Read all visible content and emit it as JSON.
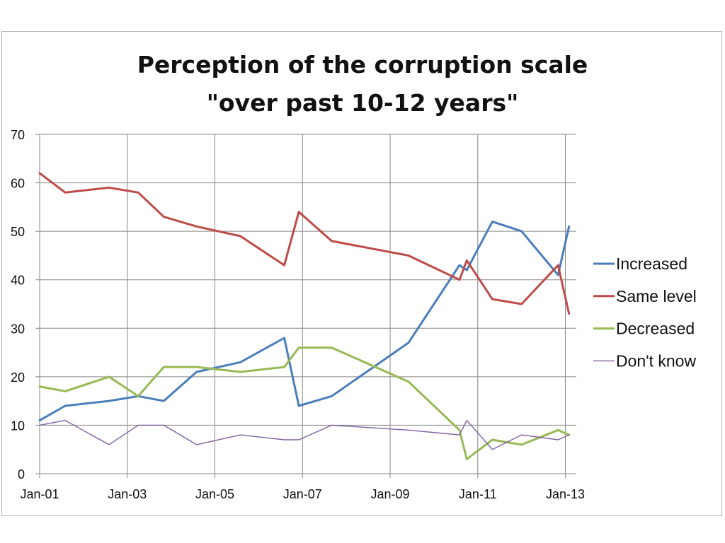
{
  "chart_data": {
    "type": "line",
    "title_lines": [
      "Perception of the corruption scale",
      "\"over past 10-12 years\""
    ],
    "xlabel": "",
    "ylabel": "",
    "ylim": [
      0,
      70
    ],
    "yticks": [
      0,
      10,
      20,
      30,
      40,
      50,
      60,
      70
    ],
    "xlim": [
      "2001-01",
      "2013-04"
    ],
    "xtick_labels": [
      "Jan-01",
      "Jan-03",
      "Jan-05",
      "Jan-07",
      "Jan-09",
      "Jan-11",
      "Jan-13"
    ],
    "xtick_values": [
      "2001-01",
      "2003-01",
      "2005-01",
      "2007-01",
      "2009-01",
      "2011-01",
      "2013-01"
    ],
    "grid": true,
    "legend_position": "right",
    "series": [
      {
        "name": "Increased",
        "color": "#4a7ebb",
        "points": [
          {
            "x": "2001-01",
            "y": 11
          },
          {
            "x": "2001-08",
            "y": 14
          },
          {
            "x": "2002-08",
            "y": 15
          },
          {
            "x": "2003-04",
            "y": 16
          },
          {
            "x": "2003-11",
            "y": 15
          },
          {
            "x": "2004-08",
            "y": 21
          },
          {
            "x": "2005-08",
            "y": 23
          },
          {
            "x": "2006-08",
            "y": 28
          },
          {
            "x": "2006-12",
            "y": 14
          },
          {
            "x": "2007-09",
            "y": 16
          },
          {
            "x": "2009-06",
            "y": 27
          },
          {
            "x": "2010-08",
            "y": 43
          },
          {
            "x": "2010-10",
            "y": 42
          },
          {
            "x": "2011-05",
            "y": 52
          },
          {
            "x": "2012-01",
            "y": 50
          },
          {
            "x": "2012-11",
            "y": 41
          },
          {
            "x": "2013-02",
            "y": 51
          }
        ]
      },
      {
        "name": "Same level",
        "color": "#be4b48",
        "points": [
          {
            "x": "2001-01",
            "y": 62
          },
          {
            "x": "2001-08",
            "y": 58
          },
          {
            "x": "2002-08",
            "y": 59
          },
          {
            "x": "2003-04",
            "y": 58
          },
          {
            "x": "2003-11",
            "y": 53
          },
          {
            "x": "2004-08",
            "y": 51
          },
          {
            "x": "2005-08",
            "y": 49
          },
          {
            "x": "2006-08",
            "y": 43
          },
          {
            "x": "2006-12",
            "y": 54
          },
          {
            "x": "2007-09",
            "y": 48
          },
          {
            "x": "2009-06",
            "y": 45
          },
          {
            "x": "2010-08",
            "y": 40
          },
          {
            "x": "2010-10",
            "y": 44
          },
          {
            "x": "2011-05",
            "y": 36
          },
          {
            "x": "2012-01",
            "y": 35
          },
          {
            "x": "2012-11",
            "y": 43
          },
          {
            "x": "2013-02",
            "y": 33
          }
        ]
      },
      {
        "name": "Decreased",
        "color": "#98b954",
        "points": [
          {
            "x": "2001-01",
            "y": 18
          },
          {
            "x": "2001-08",
            "y": 17
          },
          {
            "x": "2002-08",
            "y": 20
          },
          {
            "x": "2003-04",
            "y": 16
          },
          {
            "x": "2003-11",
            "y": 22
          },
          {
            "x": "2004-08",
            "y": 22
          },
          {
            "x": "2005-08",
            "y": 21
          },
          {
            "x": "2006-08",
            "y": 22
          },
          {
            "x": "2006-12",
            "y": 26
          },
          {
            "x": "2007-09",
            "y": 26
          },
          {
            "x": "2009-06",
            "y": 19
          },
          {
            "x": "2010-08",
            "y": 9
          },
          {
            "x": "2010-10",
            "y": 3
          },
          {
            "x": "2011-05",
            "y": 7
          },
          {
            "x": "2012-01",
            "y": 6
          },
          {
            "x": "2012-11",
            "y": 9
          },
          {
            "x": "2013-02",
            "y": 8
          }
        ]
      },
      {
        "name": "Don't know",
        "color": "#7d60a0",
        "points": [
          {
            "x": "2001-01",
            "y": 10
          },
          {
            "x": "2001-08",
            "y": 11
          },
          {
            "x": "2002-08",
            "y": 6
          },
          {
            "x": "2003-04",
            "y": 10
          },
          {
            "x": "2003-11",
            "y": 10
          },
          {
            "x": "2004-08",
            "y": 6
          },
          {
            "x": "2005-08",
            "y": 8
          },
          {
            "x": "2006-08",
            "y": 7
          },
          {
            "x": "2006-12",
            "y": 7
          },
          {
            "x": "2007-09",
            "y": 10
          },
          {
            "x": "2009-06",
            "y": 9
          },
          {
            "x": "2010-08",
            "y": 8
          },
          {
            "x": "2010-10",
            "y": 11
          },
          {
            "x": "2011-05",
            "y": 5
          },
          {
            "x": "2012-01",
            "y": 8
          },
          {
            "x": "2012-11",
            "y": 7
          },
          {
            "x": "2013-02",
            "y": 8
          }
        ]
      }
    ]
  }
}
